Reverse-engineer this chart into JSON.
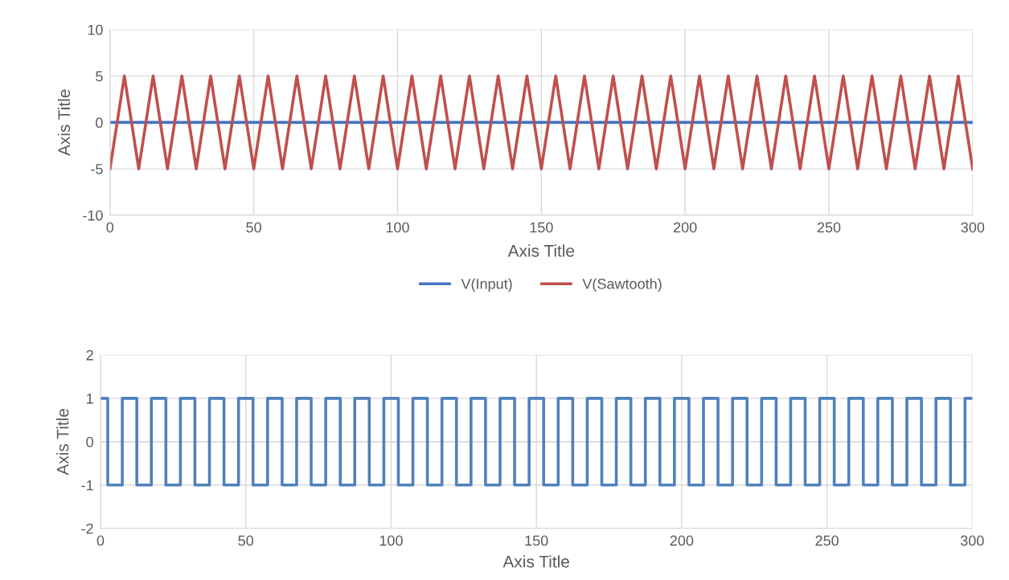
{
  "chart_data": [
    {
      "type": "line",
      "xlabel": "Axis Title",
      "ylabel": "Axis Title",
      "xlim": [
        0,
        300
      ],
      "xticks": [
        0,
        50,
        100,
        150,
        200,
        250,
        300
      ],
      "ylim": [
        -10,
        10
      ],
      "yticks": [
        -10,
        -5,
        0,
        5,
        10
      ],
      "grid": true,
      "legend": "bottom",
      "series": [
        {
          "name": "V(Input)",
          "color": "#4472c4",
          "x": [
            0,
            300
          ],
          "values": [
            0,
            0
          ]
        },
        {
          "name": "V(Sawtooth)",
          "color": "#c0504d",
          "x": [
            0,
            5,
            10,
            15,
            20,
            25,
            30,
            35,
            40,
            45,
            50,
            55,
            60,
            65,
            70,
            75,
            80,
            85,
            90,
            95,
            100,
            105,
            110,
            115,
            120,
            125,
            130,
            135,
            140,
            145,
            150,
            155,
            160,
            165,
            170,
            175,
            180,
            185,
            190,
            195,
            200,
            205,
            210,
            215,
            220,
            225,
            230,
            235,
            240,
            245,
            250,
            255,
            260,
            265,
            270,
            275,
            280,
            285,
            290,
            295,
            300
          ],
          "values": [
            -5,
            5,
            -5,
            5,
            -5,
            5,
            -5,
            5,
            -5,
            5,
            -5,
            5,
            -5,
            5,
            -5,
            5,
            -5,
            5,
            -5,
            5,
            -5,
            5,
            -5,
            5,
            -5,
            5,
            -5,
            5,
            -5,
            5,
            -5,
            5,
            -5,
            5,
            -5,
            5,
            -5,
            5,
            -5,
            5,
            -5,
            5,
            -5,
            5,
            -5,
            5,
            -5,
            5,
            -5,
            5,
            -5,
            5,
            -5,
            5,
            -5,
            5,
            -5,
            5,
            -5,
            5,
            -5
          ]
        }
      ]
    },
    {
      "type": "step",
      "xlabel": "Axis Title",
      "ylabel": "Axis Title",
      "xlim": [
        0,
        300
      ],
      "xticks": [
        0,
        50,
        100,
        150,
        200,
        250,
        300
      ],
      "ylim": [
        -2,
        2
      ],
      "yticks": [
        -2,
        -1,
        0,
        1,
        2
      ],
      "grid": true,
      "series": [
        {
          "color": "#4f81bd",
          "x": [
            0,
            2.5,
            7.5,
            12.5,
            17.5,
            22.5,
            27.5,
            32.5,
            37.5,
            42.5,
            47.5,
            52.5,
            57.5,
            62.5,
            67.5,
            72.5,
            77.5,
            82.5,
            87.5,
            92.5,
            97.5,
            102.5,
            107.5,
            112.5,
            117.5,
            122.5,
            127.5,
            132.5,
            137.5,
            142.5,
            147.5,
            152.5,
            157.5,
            162.5,
            167.5,
            172.5,
            177.5,
            182.5,
            187.5,
            192.5,
            197.5,
            202.5,
            207.5,
            212.5,
            217.5,
            222.5,
            227.5,
            232.5,
            237.5,
            242.5,
            247.5,
            252.5,
            257.5,
            262.5,
            267.5,
            272.5,
            277.5,
            282.5,
            287.5,
            292.5,
            297.5,
            300
          ],
          "values": [
            1,
            -1,
            1,
            -1,
            1,
            -1,
            1,
            -1,
            1,
            -1,
            1,
            -1,
            1,
            -1,
            1,
            -1,
            1,
            -1,
            1,
            -1,
            1,
            -1,
            1,
            -1,
            1,
            -1,
            1,
            -1,
            1,
            -1,
            1,
            -1,
            1,
            -1,
            1,
            -1,
            1,
            -1,
            1,
            -1,
            1,
            -1,
            1,
            -1,
            1,
            -1,
            1,
            -1,
            1,
            -1,
            1,
            -1,
            1,
            -1,
            1,
            -1,
            1,
            -1,
            1,
            -1,
            1,
            1
          ]
        }
      ]
    }
  ]
}
